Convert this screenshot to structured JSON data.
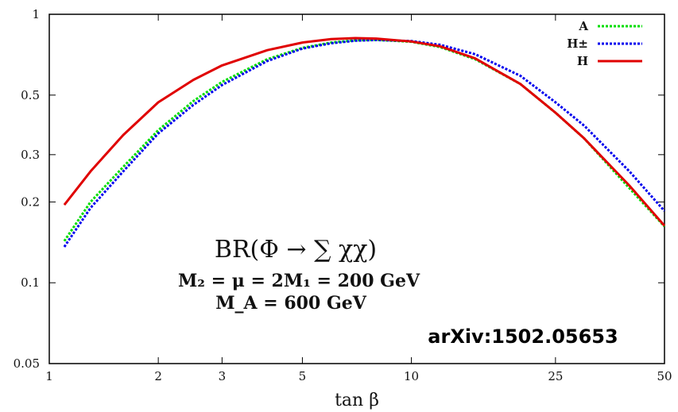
{
  "chart_data": {
    "type": "line",
    "xlabel": "tan β",
    "ylabel": "",
    "xscale": "log",
    "yscale": "log",
    "xlim": [
      1,
      50
    ],
    "ylim": [
      0.05,
      1
    ],
    "xticks": [
      1,
      2,
      3,
      5,
      10,
      25,
      50
    ],
    "xtick_labels": [
      "1",
      "2",
      "3",
      "5",
      "10",
      "25",
      "50"
    ],
    "yticks": [
      0.05,
      0.1,
      0.2,
      0.3,
      0.5,
      1
    ],
    "ytick_labels": [
      "0.05",
      "0.1",
      "0.2",
      "0.3",
      "0.5",
      "1"
    ],
    "legend_position": "top-right",
    "series": [
      {
        "name": "A",
        "color": "#00dd00",
        "dash": "dotted",
        "x": [
          1.1,
          1.3,
          1.6,
          2.0,
          2.5,
          3.0,
          4.0,
          5.0,
          6.0,
          7.0,
          8.0,
          10.0,
          12.0,
          15.0,
          20.0,
          25.0,
          30.0,
          40.0,
          50.0
        ],
        "y": [
          0.143,
          0.2,
          0.27,
          0.37,
          0.475,
          0.56,
          0.68,
          0.75,
          0.785,
          0.8,
          0.803,
          0.79,
          0.755,
          0.68,
          0.55,
          0.43,
          0.345,
          0.225,
          0.162
        ]
      },
      {
        "name": "H±",
        "color": "#0000ee",
        "dash": "dotted",
        "x": [
          1.1,
          1.3,
          1.6,
          2.0,
          2.5,
          3.0,
          4.0,
          5.0,
          6.0,
          7.0,
          8.0,
          10.0,
          12.0,
          15.0,
          20.0,
          25.0,
          30.0,
          40.0,
          50.0
        ],
        "y": [
          0.136,
          0.19,
          0.26,
          0.36,
          0.46,
          0.545,
          0.67,
          0.745,
          0.78,
          0.797,
          0.802,
          0.795,
          0.77,
          0.71,
          0.59,
          0.47,
          0.385,
          0.26,
          0.185
        ]
      },
      {
        "name": "H",
        "color": "#e00000",
        "dash": "solid",
        "x": [
          1.1,
          1.3,
          1.6,
          2.0,
          2.5,
          3.0,
          4.0,
          5.0,
          6.0,
          7.0,
          8.0,
          10.0,
          12.0,
          15.0,
          20.0,
          25.0,
          30.0,
          40.0,
          50.0
        ],
        "y": [
          0.195,
          0.26,
          0.355,
          0.47,
          0.57,
          0.645,
          0.735,
          0.785,
          0.808,
          0.815,
          0.812,
          0.792,
          0.76,
          0.685,
          0.55,
          0.43,
          0.345,
          0.23,
          0.163
        ]
      }
    ],
    "annotations": {
      "main": "BR(Φ → ∑ χχ)",
      "line1": "M₂ = μ = 2M₁ = 200 GeV",
      "line2": "M_A = 600 GeV"
    },
    "source_label": "arXiv:1502.05653"
  }
}
